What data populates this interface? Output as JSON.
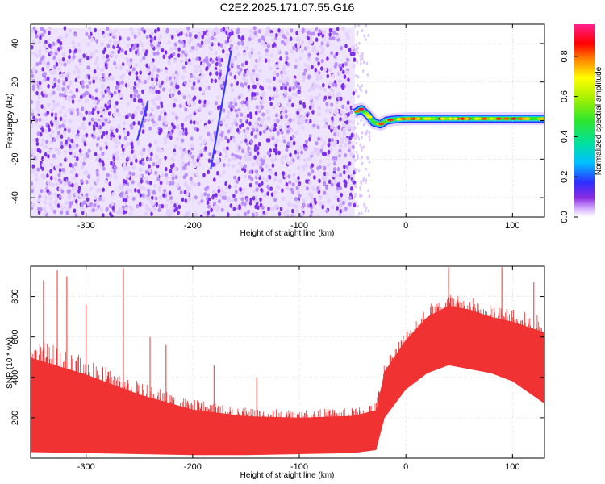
{
  "title": "C2E2.2025.171.07.55.G16",
  "chart_data": [
    {
      "type": "heatmap",
      "xlabel": "Height of straight line (km)",
      "ylabel": "Frequency (Hz)",
      "xlim": [
        -352,
        130
      ],
      "ylim": [
        -50,
        50
      ],
      "xticks": [
        -300,
        -200,
        -100,
        0,
        100
      ],
      "yticks": [
        -40,
        -20,
        0,
        20,
        40
      ],
      "colorbar": {
        "label": "Normalized spectral amplitude",
        "range": [
          0,
          0.96
        ],
        "ticks": [
          0.0,
          0.2,
          0.4,
          0.6,
          0.8
        ],
        "colormap": "hsv-rainbow (white-purple-blue-cyan-green-yellow-red-magenta)"
      },
      "noise_region": {
        "x": [
          -352,
          -48
        ],
        "y": [
          -50,
          48
        ],
        "amplitude_range": [
          0.0,
          0.15
        ],
        "color": "#7d2ef0"
      },
      "streaks": [
        {
          "x": [
            -183,
            -164
          ],
          "y": [
            -25,
            36
          ],
          "amplitude": 0.2
        },
        {
          "x": [
            -252,
            -242
          ],
          "y": [
            -10,
            10
          ],
          "amplitude": 0.12
        }
      ],
      "carrier": {
        "description": "narrow tone near 0 Hz",
        "points": [
          {
            "x": -48,
            "y": 4
          },
          {
            "x": -42,
            "y": 6
          },
          {
            "x": -36,
            "y": 3
          },
          {
            "x": -30,
            "y": -1
          },
          {
            "x": -24,
            "y": -2
          },
          {
            "x": -18,
            "y": 0
          },
          {
            "x": -12,
            "y": 0.5
          },
          {
            "x": 0,
            "y": 1
          },
          {
            "x": 40,
            "y": 1
          },
          {
            "x": 80,
            "y": 1
          },
          {
            "x": 130,
            "y": 1
          }
        ],
        "amplitude_range": [
          0.4,
          0.95
        ]
      }
    },
    {
      "type": "line",
      "xlabel": "Height of straight line (km)",
      "ylabel": "SNR (10 * v/v)",
      "xlim": [
        -352,
        130
      ],
      "ylim": [
        0,
        950
      ],
      "xticks": [
        -300,
        -200,
        -100,
        0,
        100
      ],
      "yticks": [
        200,
        400,
        600,
        800
      ],
      "color": "#f03232",
      "envelope": [
        {
          "x": -352,
          "lo": 30,
          "hi": 600
        },
        {
          "x": -300,
          "lo": 25,
          "hi": 500
        },
        {
          "x": -250,
          "lo": 20,
          "hi": 380
        },
        {
          "x": -200,
          "lo": 15,
          "hi": 290
        },
        {
          "x": -150,
          "lo": 15,
          "hi": 250
        },
        {
          "x": -100,
          "lo": 20,
          "hi": 240
        },
        {
          "x": -50,
          "lo": 25,
          "hi": 250
        },
        {
          "x": -28,
          "lo": 40,
          "hi": 280
        },
        {
          "x": -20,
          "lo": 200,
          "hi": 480
        },
        {
          "x": 0,
          "lo": 340,
          "hi": 640
        },
        {
          "x": 20,
          "lo": 420,
          "hi": 760
        },
        {
          "x": 40,
          "lo": 460,
          "hi": 820
        },
        {
          "x": 60,
          "lo": 440,
          "hi": 800
        },
        {
          "x": 80,
          "lo": 420,
          "hi": 760
        },
        {
          "x": 100,
          "lo": 380,
          "hi": 740
        },
        {
          "x": 130,
          "lo": 270,
          "hi": 700
        }
      ],
      "spikes": [
        {
          "x": -340,
          "y": 880
        },
        {
          "x": -327,
          "y": 930
        },
        {
          "x": -318,
          "y": 900
        },
        {
          "x": -300,
          "y": 760
        },
        {
          "x": -265,
          "y": 940
        },
        {
          "x": -240,
          "y": 600
        },
        {
          "x": -225,
          "y": 560
        },
        {
          "x": -180,
          "y": 460
        },
        {
          "x": -140,
          "y": 400
        },
        {
          "x": 40,
          "y": 945
        },
        {
          "x": 90,
          "y": 945
        },
        {
          "x": 120,
          "y": 870
        }
      ]
    }
  ]
}
